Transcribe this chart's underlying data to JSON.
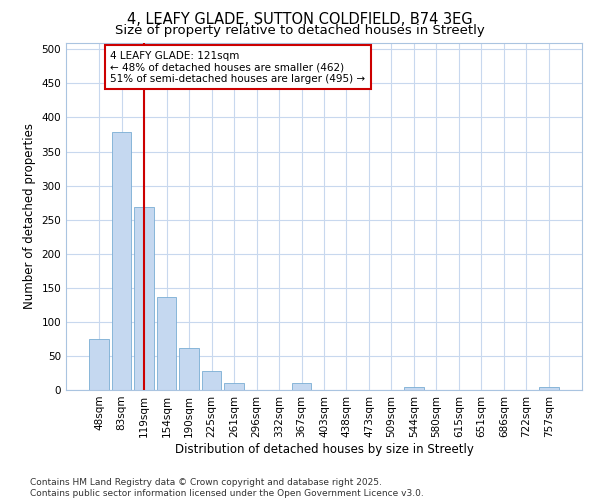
{
  "title": "4, LEAFY GLADE, SUTTON COLDFIELD, B74 3EG",
  "subtitle": "Size of property relative to detached houses in Streetly",
  "xlabel": "Distribution of detached houses by size in Streetly",
  "ylabel": "Number of detached properties",
  "categories": [
    "48sqm",
    "83sqm",
    "119sqm",
    "154sqm",
    "190sqm",
    "225sqm",
    "261sqm",
    "296sqm",
    "332sqm",
    "367sqm",
    "403sqm",
    "438sqm",
    "473sqm",
    "509sqm",
    "544sqm",
    "580sqm",
    "615sqm",
    "651sqm",
    "686sqm",
    "722sqm",
    "757sqm"
  ],
  "values": [
    75,
    378,
    268,
    137,
    62,
    28,
    10,
    0,
    0,
    10,
    0,
    0,
    0,
    0,
    5,
    0,
    0,
    0,
    0,
    0,
    5
  ],
  "bar_color": "#c5d8f0",
  "bar_edge_color": "#7aadd4",
  "background_color": "#ffffff",
  "plot_bg_color": "#ffffff",
  "grid_color": "#c8d8ee",
  "spine_color": "#aac4e0",
  "red_line_index": 2,
  "annotation_text": "4 LEAFY GLADE: 121sqm\n← 48% of detached houses are smaller (462)\n51% of semi-detached houses are larger (495) →",
  "annotation_box_color": "#ffffff",
  "annotation_box_edge_color": "#cc0000",
  "footer_line1": "Contains HM Land Registry data © Crown copyright and database right 2025.",
  "footer_line2": "Contains public sector information licensed under the Open Government Licence v3.0.",
  "ylim": [
    0,
    510
  ],
  "yticks": [
    0,
    50,
    100,
    150,
    200,
    250,
    300,
    350,
    400,
    450,
    500
  ],
  "title_fontsize": 10.5,
  "subtitle_fontsize": 9.5,
  "axis_label_fontsize": 8.5,
  "tick_fontsize": 7.5,
  "footer_fontsize": 6.5
}
